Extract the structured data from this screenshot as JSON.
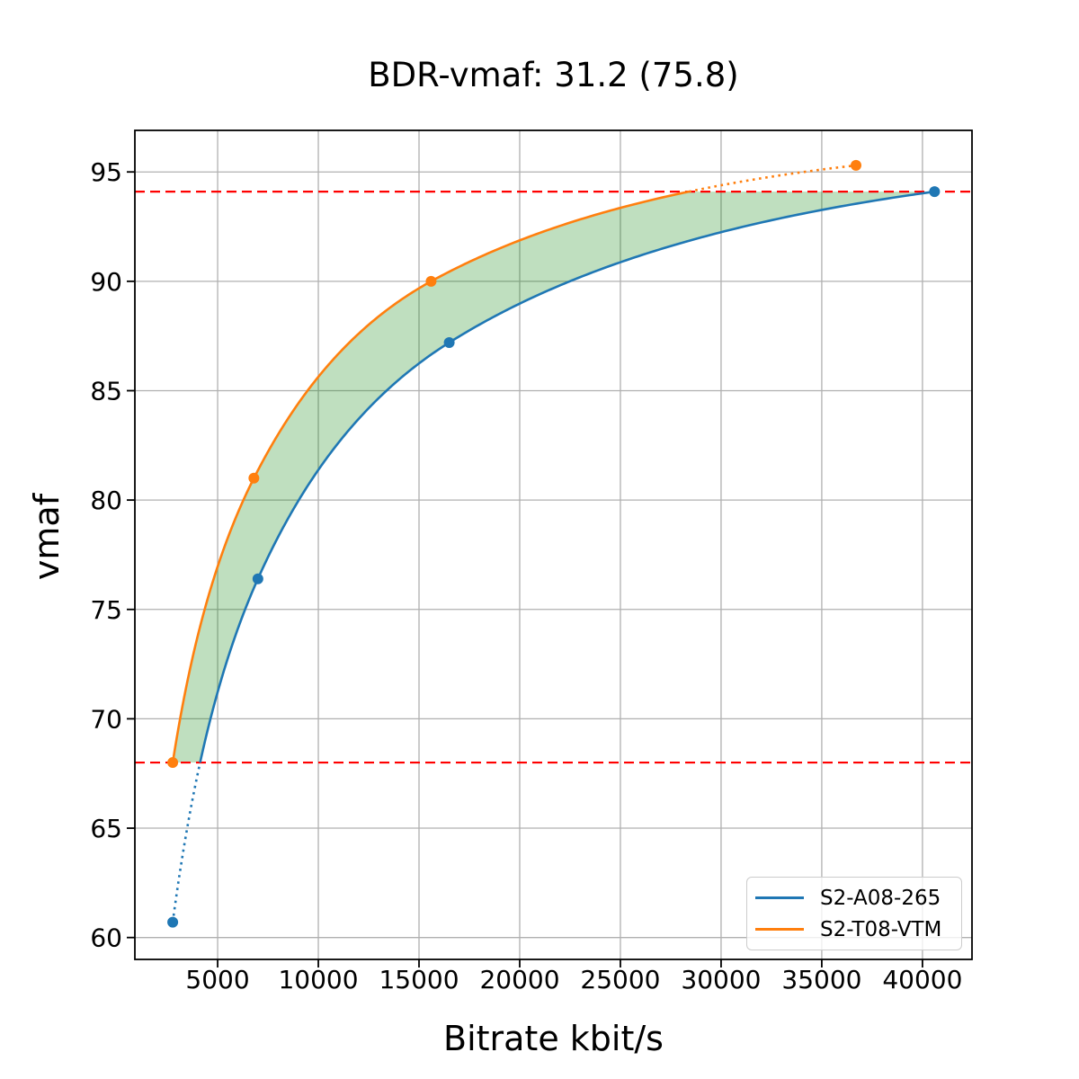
{
  "figure": {
    "title": "BDR-vmaf: 31.2 (75.8)"
  },
  "chart_data": {
    "type": "line",
    "title": "BDR-vmaf: 31.2 (75.8)",
    "xlabel": "Bitrate kbit/s",
    "ylabel": "vmaf",
    "xlim": [
      890,
      42460
    ],
    "ylim": [
      59.0,
      96.9
    ],
    "xticks": [
      5000,
      10000,
      15000,
      20000,
      25000,
      30000,
      35000,
      40000
    ],
    "yticks": [
      60,
      65,
      70,
      75,
      80,
      85,
      90,
      95
    ],
    "grid": true,
    "grid_color": "#b0b0b0",
    "axes_color": "#000000",
    "interpolation": "pchip-log-x",
    "legend_position": "lower right",
    "series": [
      {
        "name": "S2-A08-265",
        "color": "#1f77b4",
        "marker": "circle",
        "x": [
          2770,
          7000,
          16500,
          40600
        ],
        "y": [
          60.7,
          76.4,
          87.2,
          94.1
        ]
      },
      {
        "name": "S2-T08-VTM",
        "color": "#ff7f0e",
        "marker": "circle",
        "x": [
          2770,
          6800,
          15600,
          36700
        ],
        "y": [
          68.0,
          81.0,
          90.0,
          95.3
        ]
      }
    ],
    "bd_interval_lines": {
      "color": "#ff0000",
      "style": "dashed",
      "low": 68.0,
      "high": 94.1
    },
    "shaded_region": {
      "fill": "#008000",
      "opacity": 0.25,
      "between": [
        "S2-T08-VTM",
        "S2-A08-265"
      ],
      "y_range": [
        68.0,
        94.1
      ]
    }
  }
}
